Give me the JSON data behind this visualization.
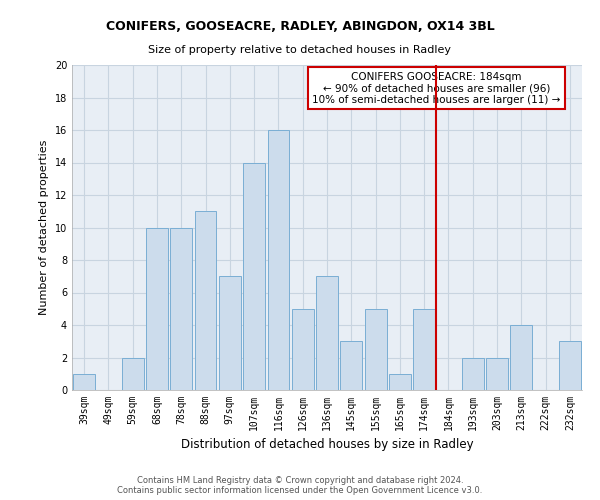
{
  "title": "CONIFERS, GOOSEACRE, RADLEY, ABINGDON, OX14 3BL",
  "subtitle": "Size of property relative to detached houses in Radley",
  "xlabel": "Distribution of detached houses by size in Radley",
  "ylabel": "Number of detached properties",
  "bar_labels": [
    "39sqm",
    "49sqm",
    "59sqm",
    "68sqm",
    "78sqm",
    "88sqm",
    "97sqm",
    "107sqm",
    "116sqm",
    "126sqm",
    "136sqm",
    "145sqm",
    "155sqm",
    "165sqm",
    "174sqm",
    "184sqm",
    "193sqm",
    "203sqm",
    "213sqm",
    "222sqm",
    "232sqm"
  ],
  "bar_values": [
    1,
    0,
    2,
    10,
    10,
    11,
    7,
    14,
    16,
    5,
    7,
    3,
    5,
    1,
    5,
    0,
    2,
    2,
    4,
    0,
    3
  ],
  "bar_color": "#ccdcec",
  "bar_edge_color": "#7aaed4",
  "plot_bg_color": "#e8eef5",
  "grid_color": "#c8d4e0",
  "vline_x_index": 15,
  "vline_color": "#cc0000",
  "annotation_title": "CONIFERS GOOSEACRE: 184sqm",
  "annotation_line1": "← 90% of detached houses are smaller (96)",
  "annotation_line2": "10% of semi-detached houses are larger (11) →",
  "annotation_box_color": "#ffffff",
  "annotation_box_edge": "#cc0000",
  "footer_line1": "Contains HM Land Registry data © Crown copyright and database right 2024.",
  "footer_line2": "Contains public sector information licensed under the Open Government Licence v3.0.",
  "ylim": [
    0,
    20
  ],
  "yticks": [
    0,
    2,
    4,
    6,
    8,
    10,
    12,
    14,
    16,
    18,
    20
  ],
  "title_fontsize": 9,
  "subtitle_fontsize": 8,
  "ylabel_fontsize": 8,
  "xlabel_fontsize": 8.5,
  "tick_fontsize": 7,
  "ann_fontsize": 7.5,
  "footer_fontsize": 6
}
